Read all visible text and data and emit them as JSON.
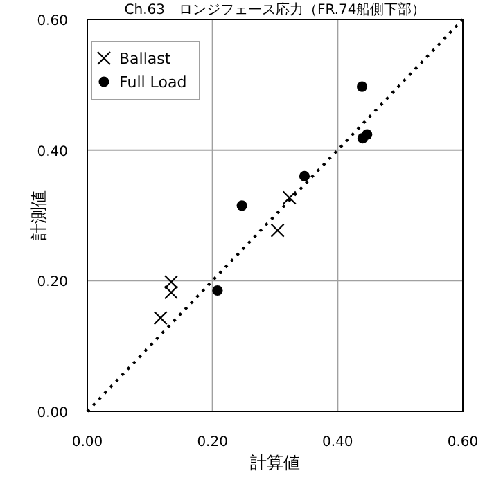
{
  "chart_data": {
    "type": "scatter",
    "title": "Ch.63　ロンジフェース応力（FR.74船側下部）",
    "xlabel": "計算値",
    "ylabel": "計測値",
    "xlim": [
      0,
      0.6
    ],
    "ylim": [
      0,
      0.6
    ],
    "xticks": [
      {
        "value": 0,
        "label": "0.00"
      },
      {
        "value": 0.2,
        "label": "0.20"
      },
      {
        "value": 0.4,
        "label": "0.40"
      },
      {
        "value": 0.6,
        "label": "0.60"
      }
    ],
    "yticks": [
      {
        "value": 0,
        "label": "0.00"
      },
      {
        "value": 0.2,
        "label": "0.20"
      },
      {
        "value": 0.4,
        "label": "0.40"
      },
      {
        "value": 0.6,
        "label": "0.60"
      }
    ],
    "grid": true,
    "legend": "top left",
    "series": [
      {
        "name": "Ballast",
        "type": "scatter",
        "marker": "cross",
        "color": "#000000",
        "x": [
          0.117,
          0.134,
          0.134,
          0.304,
          0.323
        ],
        "values": [
          0.143,
          0.198,
          0.182,
          0.277,
          0.327
        ]
      },
      {
        "name": "Full Load",
        "type": "scatter",
        "marker": "circle",
        "color": "#000000",
        "x": [
          0.208,
          0.247,
          0.347,
          0.439,
          0.44,
          0.447
        ],
        "values": [
          0.185,
          0.315,
          0.36,
          0.497,
          0.418,
          0.424
        ]
      },
      {
        "type": "line",
        "line_style": "dotted",
        "marker": "none",
        "color": "#000000",
        "x": [
          0,
          0.6
        ],
        "values": [
          0,
          0.6
        ]
      }
    ]
  }
}
